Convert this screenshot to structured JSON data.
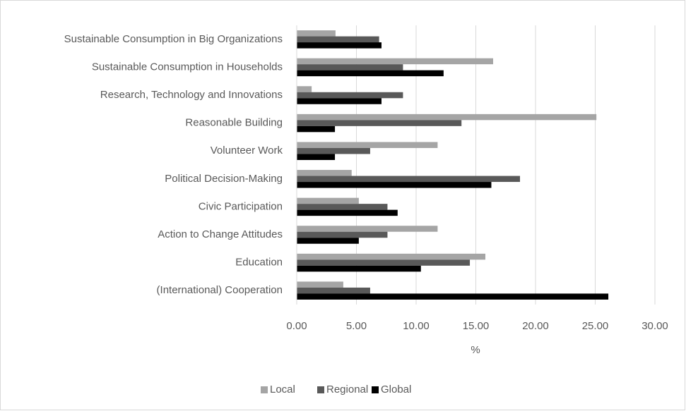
{
  "chart_data": {
    "type": "bar",
    "orientation": "horizontal",
    "xlabel": "%",
    "categories": [
      "Sustainable Consumption in Big Organizations",
      "Sustainable Consumption in Households",
      "Research, Technology and Innovations",
      "Reasonable Building",
      "Volunteer Work",
      "Political Decision-Making",
      "Civic Participation",
      "Action to Change Attitudes",
      "Education",
      "(International) Cooperation"
    ],
    "series": [
      {
        "name": "Local",
        "color": "#a5a5a5",
        "values": [
          3.25,
          16.45,
          1.25,
          25.1,
          11.8,
          4.6,
          5.2,
          11.8,
          15.8,
          3.9
        ]
      },
      {
        "name": "Regional",
        "color": "#595959",
        "values": [
          6.9,
          8.9,
          8.9,
          13.8,
          6.15,
          18.7,
          7.6,
          7.6,
          14.5,
          6.15
        ]
      },
      {
        "name": "Global",
        "color": "#000000",
        "values": [
          7.1,
          12.3,
          7.1,
          3.2,
          3.2,
          16.3,
          8.45,
          5.2,
          10.4,
          26.1
        ]
      }
    ],
    "xlim": [
      0,
      30
    ],
    "xticks": [
      {
        "value": 0,
        "label": "0.00"
      },
      {
        "value": 5,
        "label": "5.00"
      },
      {
        "value": 10,
        "label": "10.00"
      },
      {
        "value": 15,
        "label": "15.00"
      },
      {
        "value": 20,
        "label": "20.00"
      },
      {
        "value": 25,
        "label": "25.00"
      },
      {
        "value": 30,
        "label": "30.00"
      }
    ],
    "grid": true,
    "legend": "bottom"
  }
}
